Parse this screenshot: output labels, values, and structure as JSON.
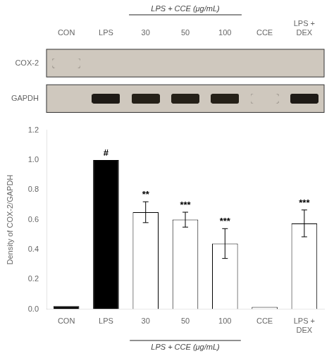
{
  "chart_data": [
    {
      "type": "blot",
      "categories": [
        "CON",
        "LPS",
        "30",
        "50",
        "100",
        "CCE",
        "LPS +\nDEX"
      ],
      "series": [
        {
          "name": "COX-2",
          "colors": [
            "#cfc8be",
            "#1e1a16",
            "#252018",
            "#252018",
            "#252018",
            "#cfc8be",
            "#1e1a16"
          ]
        },
        {
          "name": "GAPDH",
          "colors": [
            "#1e1a16",
            "#1e1a16",
            "#1e1a16",
            "#1e1a16",
            "#1e1a16",
            "#1e1a16",
            "#1e1a16"
          ]
        }
      ],
      "color": "#cfc8be",
      "annotations": [
        {
          "text": "LPS + CCE (μg/mL)",
          "from": "30",
          "to": "100"
        }
      ]
    },
    {
      "type": "bar",
      "categories": [
        "CON",
        "LPS",
        "30",
        "50",
        "100",
        "CCE",
        "LPS +\nDEX"
      ],
      "values": [
        0.02,
        1.0,
        0.65,
        0.6,
        0.44,
        0.015,
        0.575
      ],
      "errors": [
        null,
        null,
        0.07,
        0.05,
        0.1,
        null,
        0.09
      ],
      "colors": [
        "black",
        "black",
        "white",
        "white",
        "white",
        "white",
        "white"
      ],
      "ylabel": "Density of COX-2/GAPDH",
      "ylim": [
        0,
        1.2
      ],
      "yticks": [
        {
          "value": 0.0,
          "label": "0.0"
        },
        0.2,
        0.4,
        0.6,
        0.8,
        {
          "value": 1.0,
          "label": "1.0"
        },
        1.2
      ],
      "grid": false,
      "annotations": [
        {
          "text": "#",
          "category": "LPS"
        },
        {
          "text": "**",
          "category": "30"
        },
        {
          "text": "***",
          "category": "50"
        },
        {
          "text": "***",
          "category": "100"
        },
        {
          "text": "***",
          "category": "LPS +\nDEX"
        },
        {
          "text": "LPS + CCE (μg/mL)",
          "from": "30",
          "to": "100"
        }
      ]
    }
  ]
}
